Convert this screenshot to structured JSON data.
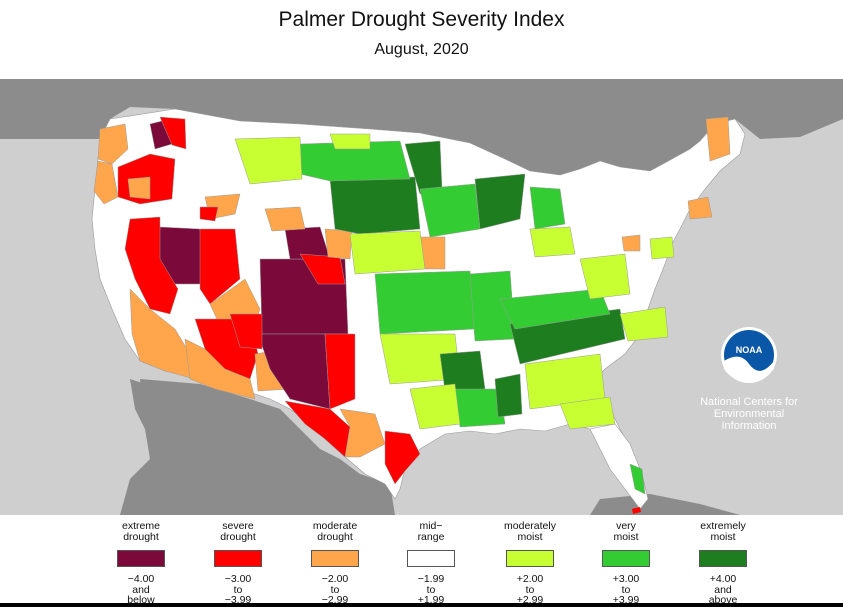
{
  "title": "Palmer Drought Severity Index",
  "subtitle": "August, 2020",
  "noaa": {
    "logo_text": "NOAA",
    "line1": "National Centers for",
    "line2": "Environmental",
    "line3": "Information"
  },
  "colors": {
    "extreme_drought": "#7b0a3a",
    "severe_drought": "#ff0000",
    "moderate_drought": "#ffa64d",
    "mid_range": "#ffffff",
    "moderately_moist": "#c8ff33",
    "very_moist": "#33cc33",
    "extremely_moist": "#1e7d1e",
    "ocean": "#cfcfcf",
    "land_outside": "#8c8c8c"
  },
  "legend": [
    {
      "label1": "extreme",
      "label2": "drought",
      "range1": "−4.00",
      "range2": "and",
      "range3": "below",
      "color": "#7b0a3a"
    },
    {
      "label1": "severe",
      "label2": "drought",
      "range1": "−3.00",
      "range2": "to",
      "range3": "−3.99",
      "color": "#ff0000"
    },
    {
      "label1": "moderate",
      "label2": "drought",
      "range1": "−2.00",
      "range2": "to",
      "range3": "−2.99",
      "color": "#ffa64d"
    },
    {
      "label1": "mid−",
      "label2": "range",
      "range1": "−1.99",
      "range2": "to",
      "range3": "+1.99",
      "color": "#ffffff"
    },
    {
      "label1": "moderately",
      "label2": "moist",
      "range1": "+2.00",
      "range2": "to",
      "range3": "+2.99",
      "color": "#c8ff33"
    },
    {
      "label1": "very",
      "label2": "moist",
      "range1": "+3.00",
      "range2": "to",
      "range3": "+3.99",
      "color": "#33cc33"
    },
    {
      "label1": "extremely",
      "label2": "moist",
      "range1": "+4.00",
      "range2": "and",
      "range3": "above",
      "color": "#1e7d1e"
    }
  ]
}
